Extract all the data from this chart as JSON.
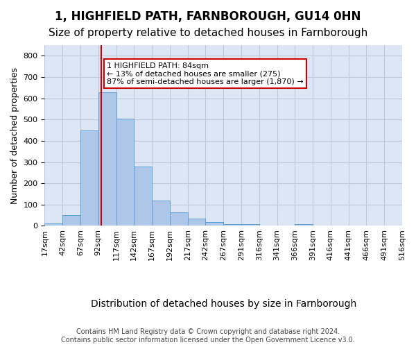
{
  "title": "1, HIGHFIELD PATH, FARNBOROUGH, GU14 0HN",
  "subtitle": "Size of property relative to detached houses in Farnborough",
  "xlabel": "Distribution of detached houses by size in Farnborough",
  "ylabel": "Number of detached properties",
  "bar_values": [
    10,
    52,
    447,
    627,
    505,
    280,
    118,
    63,
    33,
    18,
    8,
    8,
    0,
    0,
    7,
    0,
    0,
    0,
    0,
    0
  ],
  "bar_labels": [
    "17sqm",
    "42sqm",
    "67sqm",
    "92sqm",
    "117sqm",
    "142sqm",
    "167sqm",
    "192sqm",
    "217sqm",
    "242sqm",
    "267sqm",
    "291sqm",
    "316sqm",
    "341sqm",
    "366sqm",
    "391sqm",
    "416sqm",
    "441sqm",
    "466sqm",
    "491sqm",
    "516sqm"
  ],
  "bar_color": "#aec6e8",
  "bar_edge_color": "#5a9fd4",
  "vline_x": 84,
  "vline_color": "#cc0000",
  "annotation_text": "1 HIGHFIELD PATH: 84sqm\n← 13% of detached houses are smaller (275)\n87% of semi-detached houses are larger (1,870) →",
  "annotation_box_color": "#ffffff",
  "annotation_box_edge": "#cc0000",
  "ylim": [
    0,
    850
  ],
  "yticks": [
    0,
    100,
    200,
    300,
    400,
    500,
    600,
    700,
    800
  ],
  "grid_color": "#c0c8d8",
  "background_color": "#dce6f5",
  "footer": "Contains HM Land Registry data © Crown copyright and database right 2024.\nContains public sector information licensed under the Open Government Licence v3.0.",
  "title_fontsize": 12,
  "subtitle_fontsize": 11,
  "xlabel_fontsize": 10,
  "ylabel_fontsize": 9,
  "tick_fontsize": 8,
  "footer_fontsize": 7
}
